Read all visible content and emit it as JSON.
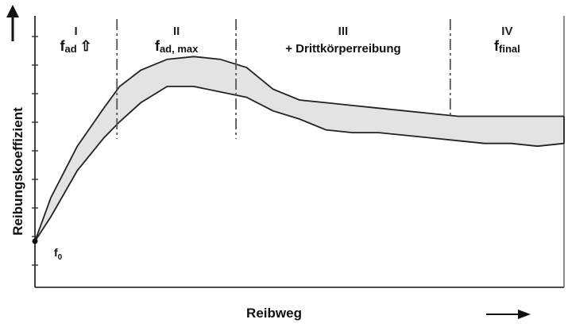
{
  "chart_data": {
    "type": "area",
    "xlabel": "Reibweg",
    "ylabel": "Reibungskoeffizient",
    "x_range": [
      0,
      100
    ],
    "y_range": [
      0,
      100
    ],
    "ticks_labeled": false,
    "grid": false,
    "band": {
      "upper": [
        {
          "x": 0,
          "y": 17
        },
        {
          "x": 3,
          "y": 33
        },
        {
          "x": 8,
          "y": 52
        },
        {
          "x": 13,
          "y": 66
        },
        {
          "x": 16,
          "y": 74
        },
        {
          "x": 20,
          "y": 80
        },
        {
          "x": 25,
          "y": 84
        },
        {
          "x": 30,
          "y": 85
        },
        {
          "x": 35,
          "y": 84
        },
        {
          "x": 40,
          "y": 81
        },
        {
          "x": 45,
          "y": 73
        },
        {
          "x": 50,
          "y": 69
        },
        {
          "x": 55,
          "y": 68
        },
        {
          "x": 60,
          "y": 67
        },
        {
          "x": 65,
          "y": 66
        },
        {
          "x": 70,
          "y": 65
        },
        {
          "x": 75,
          "y": 64
        },
        {
          "x": 80,
          "y": 63
        },
        {
          "x": 85,
          "y": 63
        },
        {
          "x": 90,
          "y": 63
        },
        {
          "x": 95,
          "y": 63
        },
        {
          "x": 100,
          "y": 63
        }
      ],
      "lower": [
        {
          "x": 0,
          "y": 17
        },
        {
          "x": 3,
          "y": 26
        },
        {
          "x": 8,
          "y": 43
        },
        {
          "x": 13,
          "y": 55
        },
        {
          "x": 16,
          "y": 61
        },
        {
          "x": 20,
          "y": 68
        },
        {
          "x": 25,
          "y": 74
        },
        {
          "x": 30,
          "y": 74
        },
        {
          "x": 35,
          "y": 72
        },
        {
          "x": 40,
          "y": 70
        },
        {
          "x": 45,
          "y": 65
        },
        {
          "x": 50,
          "y": 62
        },
        {
          "x": 55,
          "y": 58
        },
        {
          "x": 60,
          "y": 57
        },
        {
          "x": 65,
          "y": 57
        },
        {
          "x": 70,
          "y": 56
        },
        {
          "x": 75,
          "y": 55
        },
        {
          "x": 80,
          "y": 54
        },
        {
          "x": 85,
          "y": 53
        },
        {
          "x": 90,
          "y": 53
        },
        {
          "x": 95,
          "y": 52
        },
        {
          "x": 100,
          "y": 53
        }
      ],
      "fill": "#e3e3e3",
      "stroke": "#222222"
    },
    "phase_boundaries_x": [
      15.5,
      38,
      78.5
    ],
    "phases": [
      {
        "numeral": "I",
        "label": "f",
        "sub": "ad",
        "arrow": "⇧"
      },
      {
        "numeral": "II",
        "label": "f",
        "sub": "ad, max"
      },
      {
        "numeral": "III",
        "label": "+ Drittkörperreibung"
      },
      {
        "numeral": "IV",
        "label": "f",
        "sub": "final"
      }
    ],
    "start_label": {
      "label": "f",
      "sub": "0"
    },
    "colors": {
      "axis": "#111111",
      "band_fill": "#e3e3e3",
      "band_stroke": "#222222",
      "divider": "#555555"
    }
  }
}
